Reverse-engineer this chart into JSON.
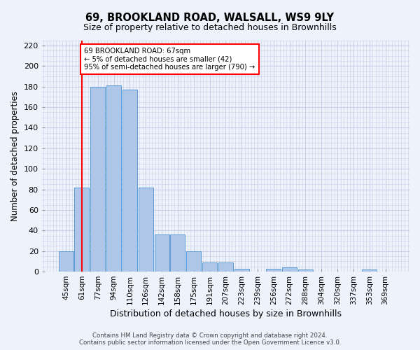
{
  "title1": "69, BROOKLAND ROAD, WALSALL, WS9 9LY",
  "title2": "Size of property relative to detached houses in Brownhills",
  "xlabel": "Distribution of detached houses by size in Brownhills",
  "ylabel": "Number of detached properties",
  "bar_labels": [
    "45sqm",
    "61sqm",
    "77sqm",
    "94sqm",
    "110sqm",
    "126sqm",
    "142sqm",
    "158sqm",
    "175sqm",
    "191sqm",
    "207sqm",
    "223sqm",
    "239sqm",
    "256sqm",
    "272sqm",
    "288sqm",
    "304sqm",
    "320sqm",
    "337sqm",
    "353sqm",
    "369sqm"
  ],
  "bar_values": [
    20,
    82,
    180,
    181,
    177,
    82,
    36,
    36,
    20,
    9,
    9,
    3,
    0,
    3,
    4,
    2,
    0,
    0,
    0,
    2,
    0
  ],
  "bar_color": "#aec6e8",
  "bar_edge_color": "#5b9bd5",
  "red_line_x": 1,
  "annotation_text": "69 BROOKLAND ROAD: 67sqm\n← 5% of detached houses are smaller (42)\n95% of semi-detached houses are larger (790) →",
  "annotation_box_color": "white",
  "annotation_box_edge": "red",
  "ylim": [
    0,
    225
  ],
  "yticks": [
    0,
    20,
    40,
    60,
    80,
    100,
    120,
    140,
    160,
    180,
    200,
    220
  ],
  "footer": "Contains HM Land Registry data © Crown copyright and database right 2024.\nContains public sector information licensed under the Open Government Licence v3.0.",
  "bg_color": "#eef2fb",
  "grid_color": "#c8d0e8"
}
